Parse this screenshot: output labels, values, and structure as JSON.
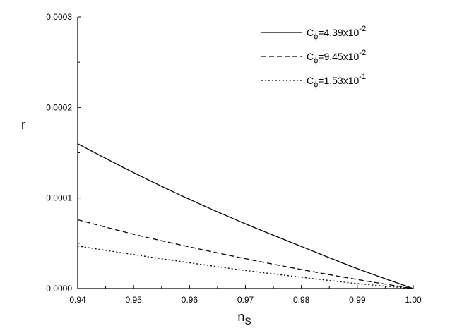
{
  "chart_data": {
    "type": "line",
    "title": "",
    "xlabel": {
      "main": "n",
      "sub": "S"
    },
    "ylabel": "r",
    "xlim": [
      0.94,
      1.0
    ],
    "ylim": [
      0,
      0.0003
    ],
    "x_ticks": [
      "0.94",
      "0.95",
      "0.96",
      "0.97",
      "0.98",
      "0.99",
      "1.00"
    ],
    "y_ticks": [
      "0.0000",
      "0.0001",
      "0.0002",
      "0.0003"
    ],
    "grid": false,
    "legend_position": "top-right",
    "x": [
      0.94,
      0.95,
      0.96,
      0.97,
      0.98,
      0.99,
      1.0
    ],
    "series": [
      {
        "style": "solid",
        "legend": {
          "prefix": "C",
          "sub": "ϕ",
          "mid": "=4.39x10",
          "sup": "-2"
        },
        "values": [
          0.00016,
          0.000128,
          9.85e-05,
          7.15e-05,
          4.65e-05,
          2.2e-05,
          0.0
        ]
      },
      {
        "style": "dashed",
        "legend": {
          "prefix": "C",
          "sub": "ϕ",
          "mid": "=9.45x10",
          "sup": "-2"
        },
        "values": [
          7.6e-05,
          6e-05,
          4.6e-05,
          3.3e-05,
          2.1e-05,
          1e-05,
          0.0
        ]
      },
      {
        "style": "dotted",
        "legend": {
          "prefix": "C",
          "sub": "ϕ",
          "mid": "=1.53x10",
          "sup": "-1"
        },
        "values": [
          4.7e-05,
          3.75e-05,
          2.85e-05,
          2e-05,
          1.25e-05,
          5.5e-06,
          0.0
        ]
      }
    ]
  }
}
